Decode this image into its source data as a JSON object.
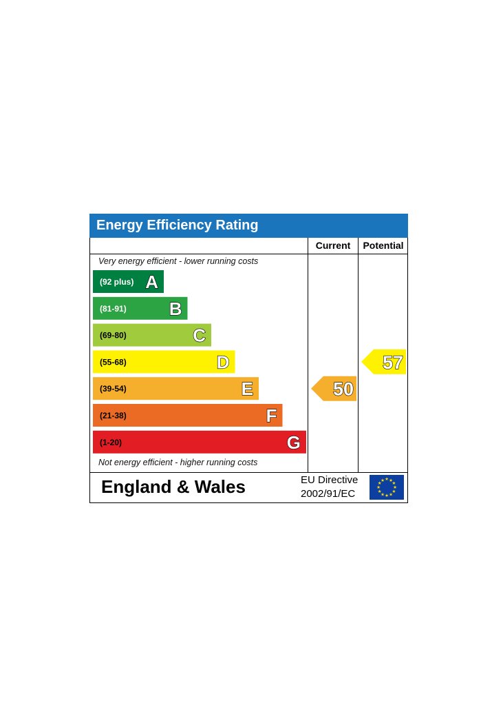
{
  "title": "Energy Efficiency Rating",
  "columns": {
    "current": "Current",
    "potential": "Potential"
  },
  "notes": {
    "top": "Very energy efficient - lower running costs",
    "bottom": "Not energy efficient - higher running costs"
  },
  "footer": {
    "region": "England & Wales",
    "directive_line1": "EU Directive",
    "directive_line2": "2002/91/EC",
    "flag_icon": "eu-flag-icon"
  },
  "colors": {
    "header": "#1b75bc",
    "flag_blue": "#0c3fa0",
    "flag_star": "#ffdd00"
  },
  "chart_data": {
    "type": "bar",
    "categories": [
      "A",
      "B",
      "C",
      "D",
      "E",
      "F",
      "G"
    ],
    "ranges": [
      "(92 plus)",
      "(81-91)",
      "(69-80)",
      "(55-68)",
      "(39-54)",
      "(21-38)",
      "(1-20)"
    ],
    "band_colors": [
      "#008040",
      "#2da444",
      "#9fcb3c",
      "#fff200",
      "#f6ae2d",
      "#ec6b24",
      "#e31d24"
    ],
    "range_text_colors": [
      "#ffffff",
      "#ffffff",
      "#000000",
      "#000000",
      "#000000",
      "#000000",
      "#000000"
    ],
    "current": {
      "value": 50,
      "band": "E",
      "color": "#f6ae2d"
    },
    "potential": {
      "value": 57,
      "band": "D",
      "color": "#fff200"
    }
  }
}
